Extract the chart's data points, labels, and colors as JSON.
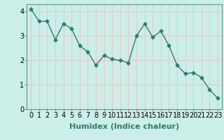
{
  "x": [
    0,
    1,
    2,
    3,
    4,
    5,
    6,
    7,
    8,
    9,
    10,
    11,
    12,
    13,
    14,
    15,
    16,
    17,
    18,
    19,
    20,
    21,
    22,
    23
  ],
  "y": [
    4.1,
    3.6,
    3.6,
    2.85,
    3.5,
    3.3,
    2.6,
    2.35,
    1.8,
    2.2,
    2.05,
    2.0,
    1.9,
    3.0,
    3.5,
    2.95,
    3.2,
    2.6,
    1.8,
    1.45,
    1.5,
    1.3,
    0.8,
    0.45
  ],
  "line_color": "#2e7d6e",
  "marker": "D",
  "marker_size": 2.5,
  "bg_color": "#cceee8",
  "grid_color": "#e8c8c8",
  "xlabel": "Humidex (Indice chaleur)",
  "xlabel_fontsize": 8,
  "tick_fontsize": 7,
  "ylim": [
    0,
    4.3
  ],
  "yticks": [
    0,
    1,
    2,
    3,
    4
  ],
  "xlim": [
    -0.5,
    23.5
  ],
  "xticks": [
    0,
    1,
    2,
    3,
    4,
    5,
    6,
    7,
    8,
    9,
    10,
    11,
    12,
    13,
    14,
    15,
    16,
    17,
    18,
    19,
    20,
    21,
    22,
    23
  ],
  "line_width": 1.0,
  "label_color": "#2e7d6e",
  "spine_color": "#5a9a8a"
}
